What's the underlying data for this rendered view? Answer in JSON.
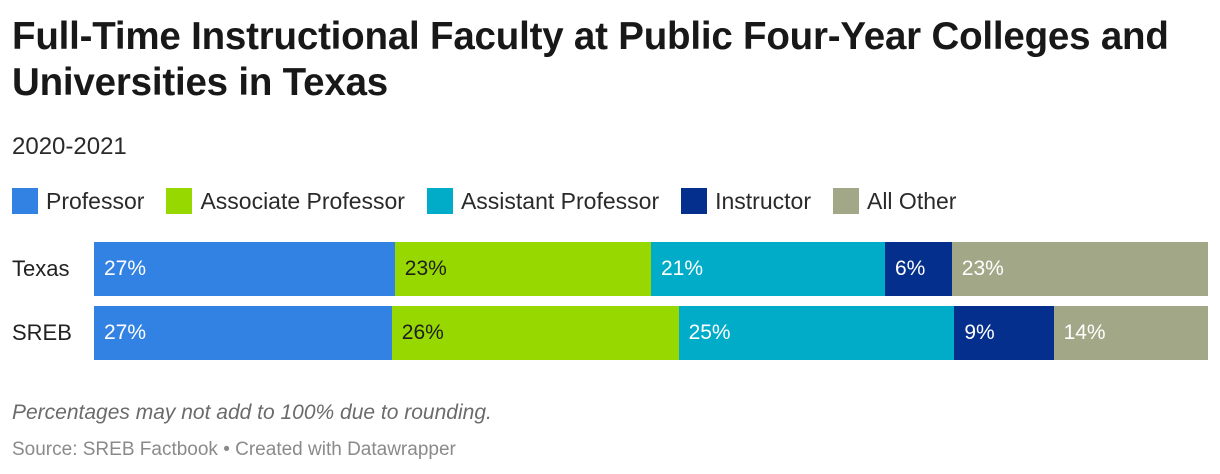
{
  "header": {
    "title": "Full-Time Instructional Faculty at Public Four-Year Colleges and Universities in Texas",
    "subtitle": "2020-2021"
  },
  "footer": {
    "note": "Percentages may not add to 100% due to rounding.",
    "source": "Source: SREB Factbook • Created with Datawrapper"
  },
  "chart_data": {
    "type": "bar",
    "orientation": "horizontal",
    "stacked": true,
    "categories": [
      "Texas",
      "SREB"
    ],
    "series": [
      {
        "name": "Professor",
        "color": "#3282e4",
        "values": [
          27,
          27
        ],
        "labels": [
          "27%",
          "27%"
        ]
      },
      {
        "name": "Associate Professor",
        "color": "#97d800",
        "values": [
          23,
          26
        ],
        "labels": [
          "23%",
          "26%"
        ]
      },
      {
        "name": "Assistant Professor",
        "color": "#00acc8",
        "values": [
          21,
          25
        ],
        "labels": [
          "21%",
          "25%"
        ]
      },
      {
        "name": "Instructor",
        "color": "#042f8c",
        "values": [
          6,
          9
        ],
        "labels": [
          "6%",
          "9%"
        ]
      },
      {
        "name": "All Other",
        "color": "#a2a787",
        "values": [
          23,
          14
        ],
        "labels": [
          "23%",
          "14%"
        ]
      }
    ],
    "legend": "top-left",
    "grid": false
  }
}
